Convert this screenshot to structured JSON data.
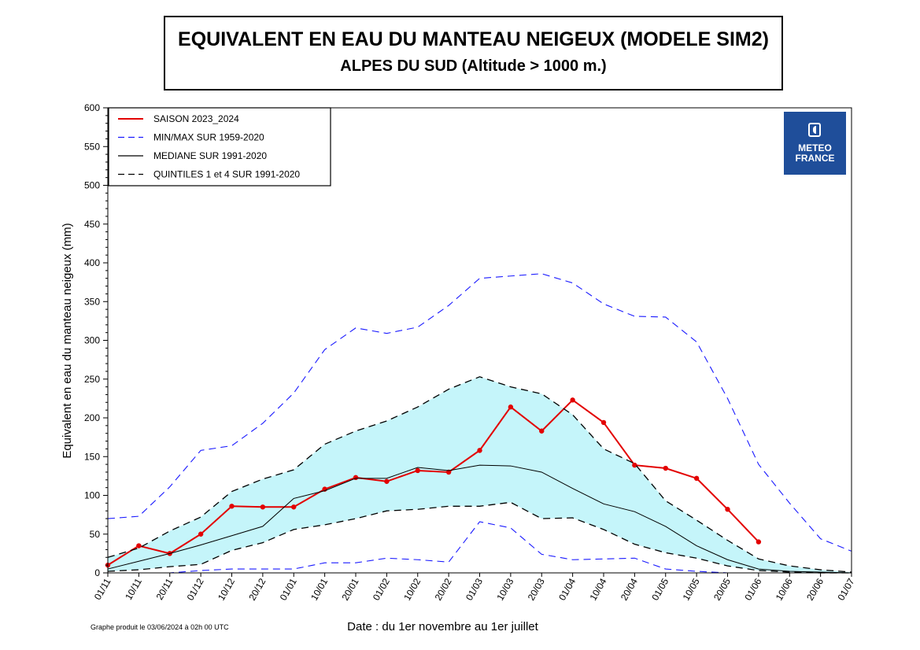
{
  "header": {
    "title": "EQUIVALENT EN EAU DU MANTEAU NEIGEUX (MODELE SIM2)",
    "subtitle": "ALPES DU SUD (Altitude > 1000 m.)"
  },
  "logo": {
    "line1": "METEO",
    "line2": "FRANCE",
    "bg_color": "#1f4e9a",
    "icon": "meteo-france-logo-icon"
  },
  "footnote": "Graphe produit le 03/06/2024 à 02h 00 UTC",
  "chart_data": {
    "type": "line",
    "title": "EQUIVALENT EN EAU DU MANTEAU NEIGEUX (MODELE SIM2)",
    "subtitle": "ALPES DU SUD (Altitude > 1000 m.)",
    "xlabel": "Date : du 1er novembre au 1er juillet",
    "ylabel": "Equivalent en eau du manteau neigeux (mm)",
    "ylim": [
      0,
      600
    ],
    "yticks": [
      0,
      50,
      100,
      150,
      200,
      250,
      300,
      350,
      400,
      450,
      500,
      550,
      600
    ],
    "categories": [
      "01/11",
      "10/11",
      "20/11",
      "01/12",
      "10/12",
      "20/12",
      "01/01",
      "10/01",
      "20/01",
      "01/02",
      "10/02",
      "20/02",
      "01/03",
      "10/03",
      "20/03",
      "01/04",
      "10/04",
      "20/04",
      "01/05",
      "10/05",
      "20/05",
      "01/06",
      "10/06",
      "20/06",
      "01/07"
    ],
    "grid": false,
    "legend_position": "top-left",
    "fill_between": {
      "lower": "Quintile 1",
      "upper": "Quintile 4",
      "color": "#c5f5fa"
    },
    "series": [
      {
        "name": "SAISON 2023_2024",
        "color": "#e30000",
        "style": "solid-markers",
        "values": [
          10,
          35,
          25,
          50,
          86,
          85,
          85,
          108,
          123,
          118,
          132,
          130,
          158,
          214,
          183,
          223,
          194,
          139,
          135,
          122,
          82,
          40,
          null,
          null,
          null
        ]
      },
      {
        "name": "Maximum",
        "legend": "MIN/MAX SUR 1959-2020",
        "color": "#1a1aff",
        "style": "dashed",
        "values": [
          70,
          73,
          111,
          158,
          164,
          193,
          232,
          288,
          316,
          309,
          317,
          345,
          380,
          383,
          386,
          374,
          347,
          331,
          330,
          298,
          225,
          140,
          90,
          44,
          28
        ]
      },
      {
        "name": "Minimum",
        "legend": "MIN/MAX SUR 1959-2020",
        "color": "#1a1aff",
        "style": "dashed",
        "values": [
          0,
          0,
          0,
          3,
          5,
          5,
          5,
          13,
          13,
          19,
          17,
          14,
          66,
          58,
          24,
          17,
          18,
          19,
          5,
          2,
          0,
          0,
          0,
          0,
          0
        ]
      },
      {
        "name": "MEDIANE SUR 1991-2020",
        "color": "#000000",
        "style": "solid",
        "values": [
          5,
          15,
          25,
          36,
          48,
          60,
          96,
          106,
          122,
          122,
          136,
          132,
          139,
          138,
          130,
          109,
          89,
          79,
          60,
          35,
          17,
          5,
          2,
          1,
          0
        ]
      },
      {
        "name": "Quintile 4",
        "legend": "QUINTILES 1 et 4 SUR 1991-2020",
        "color": "#000000",
        "style": "dashed",
        "values": [
          20,
          32,
          54,
          72,
          105,
          121,
          133,
          166,
          183,
          196,
          214,
          237,
          253,
          240,
          231,
          204,
          160,
          141,
          93,
          68,
          42,
          18,
          9,
          4,
          1
        ]
      },
      {
        "name": "Quintile 1",
        "legend": "QUINTILES 1 et 4 SUR 1991-2020",
        "color": "#000000",
        "style": "dashed",
        "values": [
          2,
          4,
          8,
          11,
          29,
          39,
          56,
          62,
          70,
          80,
          82,
          86,
          86,
          91,
          70,
          71,
          56,
          37,
          26,
          19,
          9,
          3,
          1,
          0,
          0
        ]
      }
    ],
    "legend": [
      {
        "label": "SAISON 2023_2024",
        "color": "#e30000",
        "style": "solid"
      },
      {
        "label": "MIN/MAX SUR 1959-2020",
        "color": "#1a1aff",
        "style": "dashed"
      },
      {
        "label": "MEDIANE SUR 1991-2020",
        "color": "#000000",
        "style": "solid"
      },
      {
        "label": "QUINTILES 1 et 4 SUR 1991-2020",
        "color": "#000000",
        "style": "dashed"
      }
    ]
  }
}
